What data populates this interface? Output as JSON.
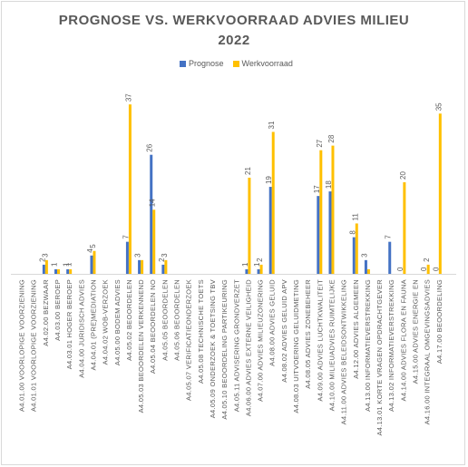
{
  "chart_data": {
    "type": "bar",
    "title_line1": "PROGNOSE VS. WERKVOORRAAD ADVIES MILIEU",
    "title_line2": "2022",
    "series": [
      {
        "name": "Prognose",
        "color": "#4472c4",
        "values": [
          0,
          0,
          2,
          1,
          1,
          0,
          4,
          0,
          0,
          7,
          3,
          26,
          2,
          0,
          0,
          0,
          0,
          0,
          0,
          1,
          1,
          19,
          0,
          0,
          0,
          17,
          18,
          0,
          8,
          3,
          0,
          7,
          0,
          0,
          0,
          0
        ]
      },
      {
        "name": "Werkvoorraad",
        "color": "#ffc000",
        "values": [
          0,
          0,
          3,
          1,
          1,
          0,
          5,
          0,
          0,
          37,
          3,
          14,
          3,
          0,
          0,
          0,
          0,
          0,
          0,
          21,
          2,
          31,
          0,
          0,
          0,
          27,
          28,
          0,
          11,
          1,
          0,
          0,
          20,
          0,
          2,
          35
        ]
      }
    ],
    "data_labels": [
      [
        null,
        null,
        "2",
        "1",
        "1",
        null,
        "4",
        null,
        null,
        "7",
        "3",
        "26",
        "2",
        null,
        null,
        null,
        null,
        null,
        null,
        "1",
        "1",
        "19",
        null,
        null,
        null,
        "17",
        "18",
        null,
        "8",
        "3",
        null,
        "7",
        "0",
        null,
        "0",
        "0"
      ],
      [
        null,
        null,
        "3",
        null,
        "1",
        null,
        "5",
        null,
        null,
        "37",
        null,
        "14",
        "3",
        null,
        null,
        null,
        null,
        null,
        null,
        "21",
        "2",
        "31",
        null,
        null,
        null,
        "27",
        "28",
        null,
        "11",
        null,
        null,
        null,
        "20",
        null,
        "2",
        "35"
      ]
    ],
    "categories": [
      "A4.01.00 VOORLOPIGE VOORZIENING",
      "A4.01.01 VOORLOPIGE VOORZIENING",
      "A4.02.00 BEZWAAR",
      "A4.03.00 BEROEP",
      "A4.03.01 HOGER BEROEP",
      "A4.04.00 JURIDISCH ADVIES",
      "A4.04.01 (PRE)MEDIATION",
      "A4.04.02 WOB-VERZOEK",
      "A4.05.00 BODEM ADVIES",
      "A4.05.02 BEOORDELEN",
      "A4.05.03 BEOORDELEN VERKENNEND",
      "A4.05.04 BEOORDELEN NO",
      "A4.05.05 BEOORDELEN",
      "A4.05.06 BEOORDELEN",
      "A4.05.07 VERIFICATIEONDERZOEK",
      "A4.05.08 TECHNISCHE TOETS",
      "A4.05.09 ONDERZOEK & TOETSING TBV",
      "A4.05.10 BEOORDELING PARTIKEURING",
      "A4.05.11 ADVISERING GRONDVERZET",
      "A4.06.00 ADVIES EXTERNE VEILIGHEID",
      "A4.07.00 ADVIES MILIEUZONERING",
      "A4.08.00 ADVIES GELUID",
      "A4.08.02 ADVIES GELUID APV",
      "A4.08.03 UITVOERING GELUIDMETING",
      "A4.08.05 ADVIES ZONEBEHEER",
      "A4.09.00 ADVIES LUCHTKWALITEIT",
      "A4.10.00 MILIEUADVIES RUIMTELIJKE",
      "A4.11.00 ADVIES BELEIDSONTWIKKELING",
      "A4.12.00 ADVIES ALGEMEEN",
      "A4.13.00 INFORMATIEVERSTREKKING",
      "A4.13.01 KORTE VRAGEN OPDRACHTGEVER",
      "A4.13.02 INFORMATIEVERSTREKKING",
      "A4.14.00 ADVIES FLORA EN FAUNA",
      "A4.15.00 ADVIES ENERGIE EN",
      "A4.16.00 INTEGRAAL OMGEVINGSADVIES",
      "A4.17.00 BEOORDELING"
    ],
    "ylim": [
      0,
      40
    ],
    "legend_position": "top",
    "grid": false
  }
}
